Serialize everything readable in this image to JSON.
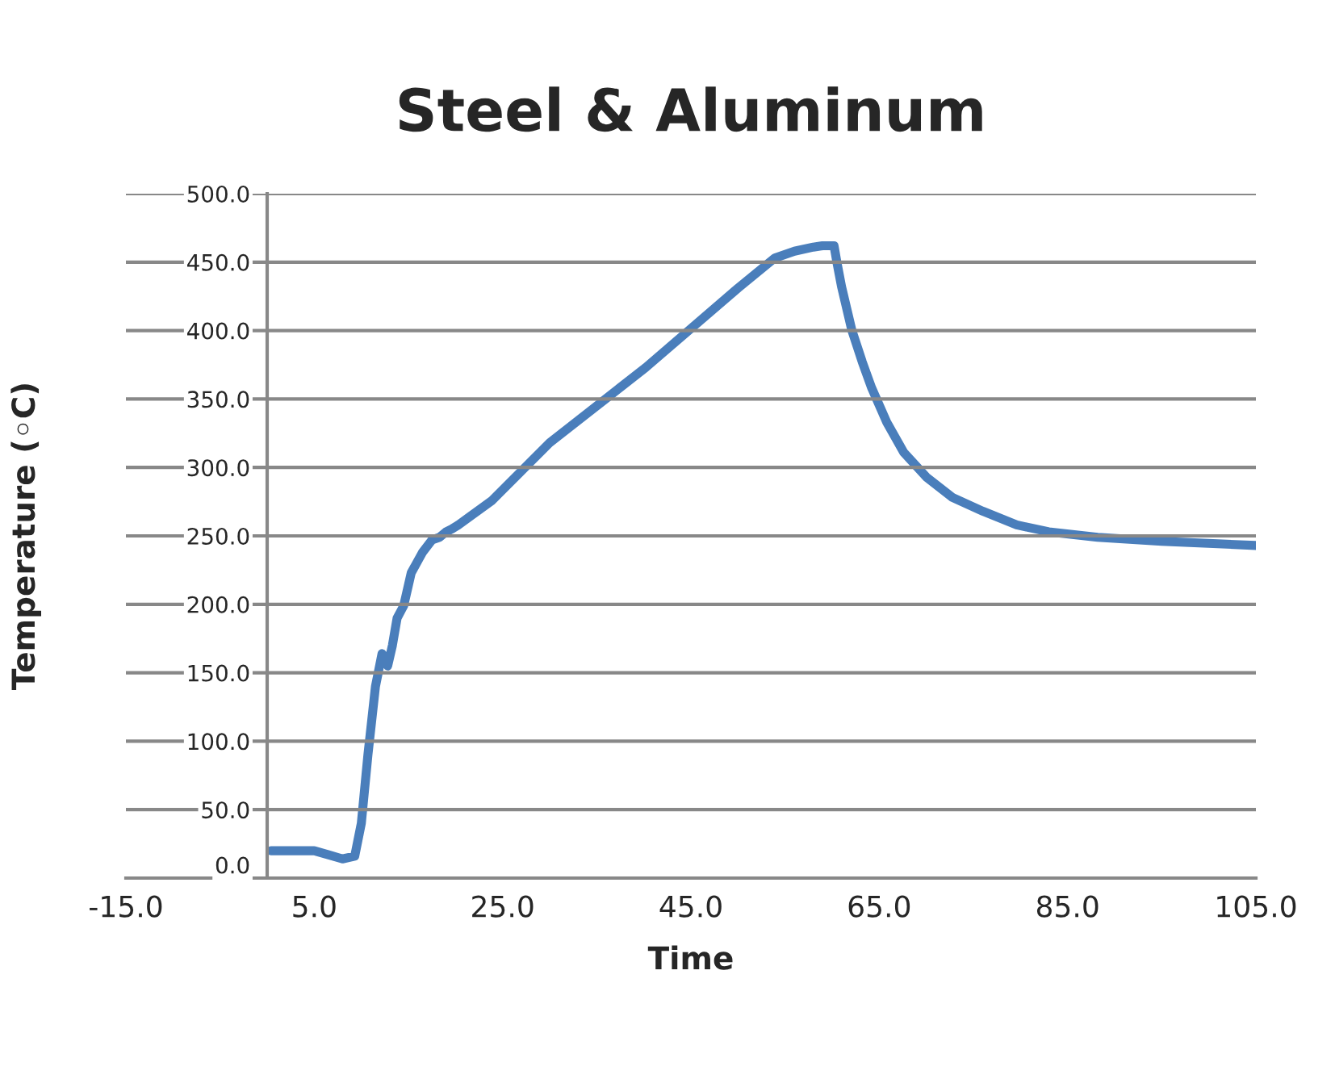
{
  "chart_data": {
    "type": "line",
    "title": "Steel & Aluminum",
    "xlabel": "Time",
    "ylabel": "Temperature (◦C)",
    "xlim": [
      -15,
      105
    ],
    "xticks": [
      {
        "value": -15,
        "label": "-15.0"
      },
      {
        "value": 5,
        "label": "5.0"
      },
      {
        "value": 25,
        "label": "25.0"
      },
      {
        "value": 45,
        "label": "45.0"
      },
      {
        "value": 65,
        "label": "65.0"
      },
      {
        "value": 85,
        "label": "85.0"
      },
      {
        "value": 105,
        "label": "105.0"
      }
    ],
    "ylim": [
      0,
      500
    ],
    "yticks": [
      {
        "value": 0,
        "label": "0.0"
      },
      {
        "value": 50,
        "label": "50.0"
      },
      {
        "value": 100,
        "label": "100.0"
      },
      {
        "value": 150,
        "label": "150.0"
      },
      {
        "value": 200,
        "label": "200.0"
      },
      {
        "value": 250,
        "label": "250.0"
      },
      {
        "value": 300,
        "label": "300.0"
      },
      {
        "value": 350,
        "label": "350.0"
      },
      {
        "value": 400,
        "label": "400.0"
      },
      {
        "value": 450,
        "label": "450.0"
      },
      {
        "value": 500,
        "label": "500.0"
      }
    ],
    "grid": "y",
    "marker": "none",
    "line_style": "solid",
    "series": [
      {
        "color": "#4a7ebb",
        "x": [
          0.4,
          5,
          6.5,
          8,
          9.3,
          10,
          10.7,
          11.5,
          12.2,
          12.8,
          13.3,
          13.8,
          14.5,
          15.3,
          16.5,
          17.5,
          18.3,
          19,
          19.6,
          20.3,
          21.3,
          23.9,
          30,
          40.2,
          50,
          53.9,
          56,
          58,
          59,
          60.2,
          60.5,
          61,
          62.1,
          63.2,
          64.2,
          65.8,
          67.6,
          70,
          72.8,
          76,
          79.6,
          83,
          88.2,
          95,
          105
        ],
        "values": [
          20,
          20,
          17,
          14,
          16,
          40,
          90,
          140,
          164,
          155,
          170,
          190,
          199,
          223,
          238,
          247,
          249,
          253,
          255,
          258,
          263,
          276,
          318,
          373,
          431,
          453,
          458,
          461,
          462,
          462,
          450,
          432,
          400,
          377,
          358,
          333,
          311,
          293,
          278,
          268,
          258,
          253,
          249,
          246,
          243
        ]
      }
    ]
  }
}
